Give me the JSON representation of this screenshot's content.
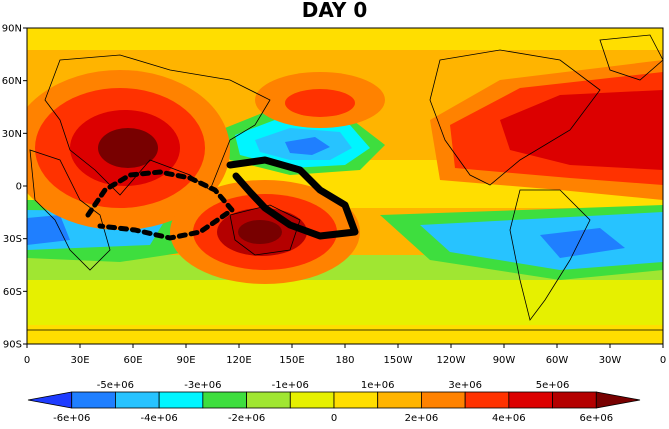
{
  "title": "DAY 0",
  "lat_labels": [
    "90N",
    "60N",
    "30N",
    "0",
    "30S",
    "60S",
    "90S"
  ],
  "lon_labels": [
    "0",
    "30E",
    "60E",
    "90E",
    "120E",
    "150E",
    "180",
    "150W",
    "120W",
    "90W",
    "60W",
    "30W",
    "0"
  ],
  "colorbar": {
    "upper_labels": [
      "-5e+06",
      "-3e+06",
      "-1e+06",
      "1e+06",
      "3e+06",
      "5e+06"
    ],
    "lower_labels": [
      "-6e+06",
      "-4e+06",
      "-2e+06",
      "0",
      "2e+06",
      "4e+06",
      "6e+06"
    ],
    "colors": [
      "#1e3cff",
      "#1f7fff",
      "#27c3ff",
      "#00f5ff",
      "#3ede3e",
      "#a0e632",
      "#e6f000",
      "#ffde00",
      "#ffb400",
      "#ff8200",
      "#ff3200",
      "#dc0000",
      "#b40000",
      "#780000"
    ]
  },
  "map": {
    "ocean_base": "#ffb400",
    "track_color": "#000000"
  }
}
